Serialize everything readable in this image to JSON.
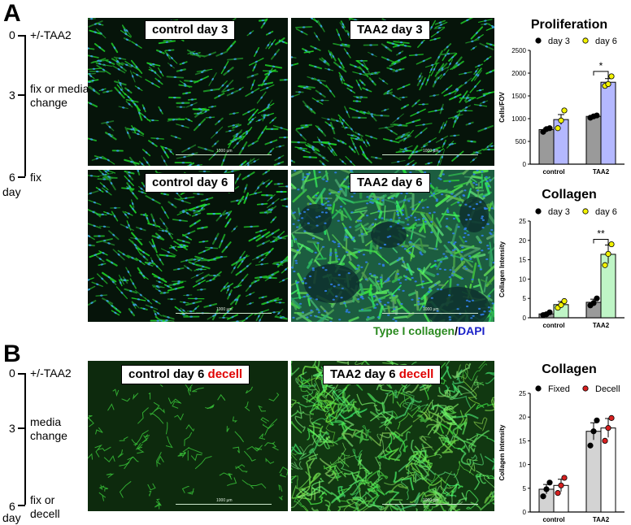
{
  "panel_a": {
    "letter": "A",
    "timeline": {
      "ticks": [
        {
          "num": "0",
          "label": "+/-TAA2"
        },
        {
          "num": "3",
          "label": "fix or media\nchange"
        },
        {
          "num": "6",
          "label": "fix"
        }
      ],
      "unit": "day"
    },
    "images": [
      {
        "label": "control day 3",
        "scale": "1000 µm"
      },
      {
        "label": "TAA2 day 3",
        "scale": "1000 µm"
      },
      {
        "label": "control day 6",
        "scale": "1000 µm"
      },
      {
        "label": "TAA2 day 6",
        "scale": "1000 µm"
      }
    ],
    "stain": {
      "part1": "Type I collagen",
      "sep": "/",
      "part2": "DAPI"
    }
  },
  "panel_b": {
    "letter": "B",
    "timeline": {
      "ticks": [
        {
          "num": "0",
          "label": "+/-TAA2"
        },
        {
          "num": "3",
          "label": "media\nchange"
        },
        {
          "num": "6",
          "label": "fix or\ndecell"
        }
      ],
      "unit": "day"
    },
    "images": [
      {
        "label": "control day 6",
        "label_red": "decell",
        "scale": "1000 µm"
      },
      {
        "label": "TAA2 day 6",
        "label_red": "decell",
        "scale": "1000 µm"
      }
    ]
  },
  "chart_data": [
    {
      "type": "bar",
      "title": "Proliferation",
      "ylabel": "Cells/FOV",
      "categories": [
        "control",
        "TAA2"
      ],
      "ylim": [
        0,
        2500
      ],
      "yticks": [
        0,
        500,
        1000,
        1500,
        2000,
        2500
      ],
      "legend": "top",
      "series": [
        {
          "name": "day 3",
          "values": [
            760,
            1050
          ],
          "errors": [
            30,
            20
          ],
          "color": "#9a9a9a",
          "dot": "#000000",
          "points": [
            [
              710,
              770,
              790
            ],
            [
              1020,
              1050,
              1070
            ]
          ]
        },
        {
          "name": "day 6",
          "values": [
            980,
            1800
          ],
          "errors": [
            110,
            80
          ],
          "color": "#b4b8ff",
          "dot": "#f2f200",
          "points": [
            [
              790,
              960,
              1180
            ],
            [
              1720,
              1760,
              1930
            ]
          ]
        }
      ],
      "annotations": [
        {
          "text": "*",
          "category": "TAA2"
        }
      ]
    },
    {
      "type": "bar",
      "title": "Collagen",
      "ylabel": "Collagen Intensity",
      "categories": [
        "control",
        "TAA2"
      ],
      "ylim": [
        0,
        25
      ],
      "yticks": [
        0,
        5,
        10,
        15,
        20,
        25
      ],
      "legend": "top",
      "series": [
        {
          "name": "day 3",
          "values": [
            1.0,
            4.0
          ],
          "errors": [
            0.3,
            0.8
          ],
          "color": "#9a9a9a",
          "dot": "#000000",
          "points": [
            [
              0.7,
              0.9,
              1.4
            ],
            [
              3.2,
              3.8,
              5.0
            ]
          ]
        },
        {
          "name": "day 6",
          "values": [
            3.4,
            16.4
          ],
          "errors": [
            0.8,
            2.4
          ],
          "color": "#bff5c6",
          "dot": "#f2f200",
          "points": [
            [
              2.6,
              3.3,
              4.3
            ],
            [
              13.6,
              16.5,
              19.0
            ]
          ]
        }
      ],
      "annotations": [
        {
          "text": "**",
          "category": "TAA2"
        }
      ]
    },
    {
      "type": "bar",
      "title": "Collagen",
      "ylabel": "Collagen Intensity",
      "categories": [
        "control",
        "TAA2"
      ],
      "ylim": [
        0,
        25
      ],
      "yticks": [
        0,
        5,
        10,
        15,
        20,
        25
      ],
      "legend": "top",
      "series": [
        {
          "name": "Fixed",
          "values": [
            4.8,
            17.0
          ],
          "errors": [
            1.0,
            1.8
          ],
          "color": "#d3d3d3",
          "dot": "#000000",
          "points": [
            [
              3.3,
              4.8,
              6.2
            ],
            [
              14.0,
              17.0,
              19.3
            ]
          ]
        },
        {
          "name": "Decell",
          "values": [
            5.6,
            17.7
          ],
          "errors": [
            1.3,
            2.0
          ],
          "color": "#ffffff",
          "dot": "#d62020",
          "points": [
            [
              4.0,
              5.6,
              7.2
            ],
            [
              15.0,
              17.7,
              19.8
            ]
          ]
        }
      ]
    }
  ]
}
